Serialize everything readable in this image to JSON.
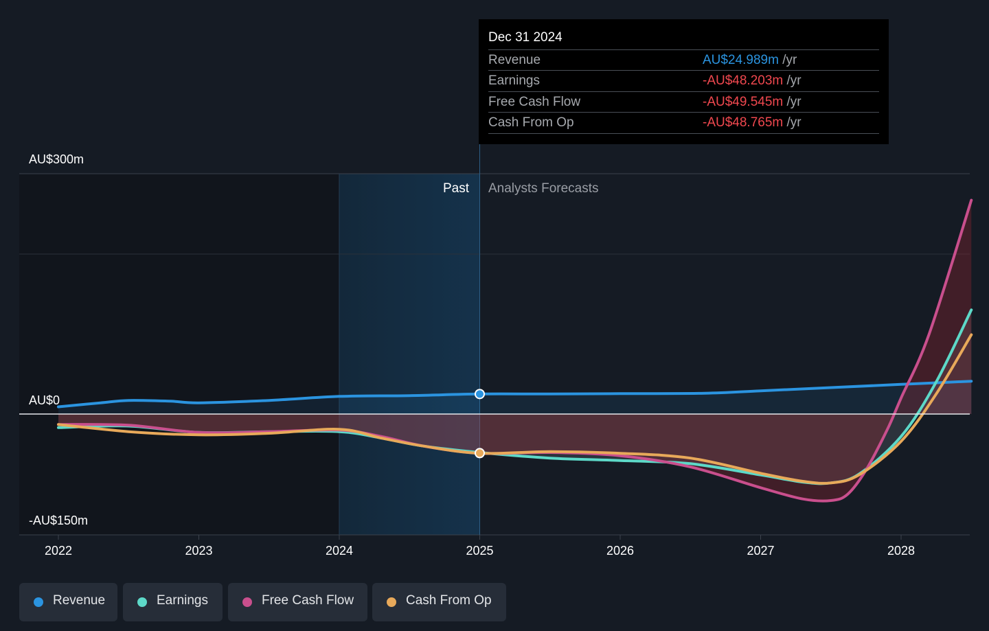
{
  "chart_data": {
    "type": "line",
    "currency_labels": {
      "top": "AU$300m",
      "zero": "AU$0",
      "bottom": "-AU$150m"
    },
    "ylim": [
      -150,
      300
    ],
    "xlim": [
      2022.0,
      2028.5
    ],
    "x_ticks": [
      "2022",
      "2023",
      "2024",
      "2025",
      "2026",
      "2027",
      "2028"
    ],
    "x_tick_values": [
      2022,
      2023,
      2024,
      2025,
      2026,
      2027,
      2028
    ],
    "past_label": "Past",
    "forecast_label": "Analysts Forecasts",
    "highlight_range": [
      2024.0,
      2025.0
    ],
    "divider_x": 2025.0,
    "series": [
      {
        "name": "Revenue",
        "color": "#2b94e0",
        "x": [
          2022.0,
          2022.3,
          2022.5,
          2022.8,
          2023.0,
          2023.5,
          2024.0,
          2024.5,
          2025.0,
          2025.5,
          2026.0,
          2026.6,
          2027.0,
          2027.5,
          2028.0,
          2028.5
        ],
        "values": [
          9,
          14,
          17,
          16,
          14,
          17,
          22,
          23,
          25,
          25,
          25.5,
          26,
          29,
          33,
          37,
          41
        ]
      },
      {
        "name": "Earnings",
        "color": "#5dd9c8",
        "x": [
          2022.0,
          2022.5,
          2023.0,
          2023.5,
          2024.0,
          2024.3,
          2024.6,
          2025.0,
          2025.5,
          2026.0,
          2026.5,
          2027.0,
          2027.3,
          2027.5,
          2027.7,
          2028.0,
          2028.25,
          2028.5
        ],
        "values": [
          -17,
          -15,
          -23,
          -22,
          -22,
          -30,
          -40,
          -48,
          -55,
          -58,
          -62,
          -76,
          -85,
          -86,
          -75,
          -28,
          40,
          130
        ]
      },
      {
        "name": "Free Cash Flow",
        "color": "#c94f8d",
        "x": [
          2022.0,
          2022.5,
          2023.0,
          2023.5,
          2024.0,
          2024.3,
          2024.6,
          2025.0,
          2025.5,
          2026.0,
          2026.5,
          2027.0,
          2027.3,
          2027.5,
          2027.62,
          2027.75,
          2027.9,
          2028.0,
          2028.2,
          2028.5
        ],
        "values": [
          -13,
          -14,
          -23,
          -22,
          -20,
          -28,
          -40,
          -49,
          -48,
          -52,
          -66,
          -92,
          -106,
          -108,
          -100,
          -70,
          -20,
          20,
          100,
          267
        ]
      },
      {
        "name": "Cash From Op",
        "color": "#e8a95a",
        "x": [
          2022.0,
          2022.5,
          2023.0,
          2023.5,
          2024.0,
          2024.3,
          2024.6,
          2025.0,
          2025.5,
          2026.0,
          2026.5,
          2027.0,
          2027.3,
          2027.5,
          2027.7,
          2028.0,
          2028.25,
          2028.5
        ],
        "values": [
          -13,
          -22,
          -26,
          -24,
          -19,
          -30,
          -40,
          -49,
          -47,
          -49,
          -55,
          -74,
          -84,
          -86,
          -76,
          -34,
          25,
          99
        ]
      }
    ],
    "tooltip": {
      "date": "Dec 31 2024",
      "rows": [
        {
          "label": "Revenue",
          "value": "AU$24.989m",
          "unit": "/yr",
          "color": "#2b94e0"
        },
        {
          "label": "Earnings",
          "value": "-AU$48.203m",
          "unit": "/yr",
          "color": "#f0484f"
        },
        {
          "label": "Free Cash Flow",
          "value": "-AU$49.545m",
          "unit": "/yr",
          "color": "#f0484f"
        },
        {
          "label": "Cash From Op",
          "value": "-AU$48.765m",
          "unit": "/yr",
          "color": "#f0484f"
        }
      ]
    }
  },
  "legend": [
    {
      "label": "Revenue",
      "color": "#2b94e0"
    },
    {
      "label": "Earnings",
      "color": "#5dd9c8"
    },
    {
      "label": "Free Cash Flow",
      "color": "#c94f8d"
    },
    {
      "label": "Cash From Op",
      "color": "#e8a95a"
    }
  ]
}
